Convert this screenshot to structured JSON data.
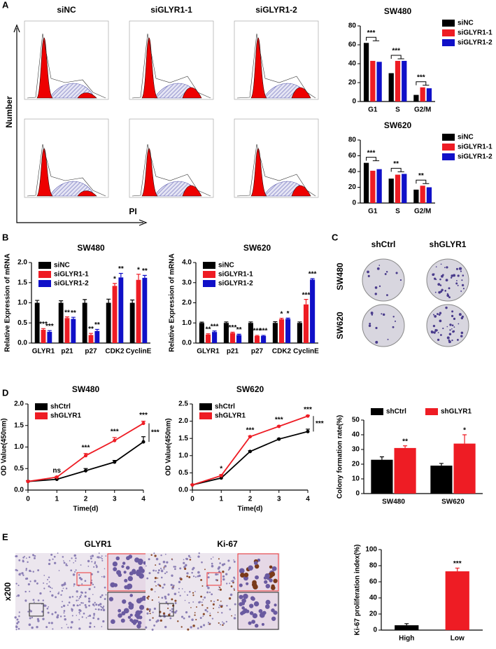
{
  "figure": {
    "panels": [
      "A",
      "B",
      "C",
      "D",
      "E"
    ],
    "flow": {
      "columns": [
        "siNC",
        "siGLYR1-1",
        "siGLYR1-2"
      ],
      "y_label": "Number",
      "x_label": "PI"
    },
    "colony": {
      "columns": [
        "shCtrl",
        "shGLYR1"
      ],
      "rows": [
        "SW480",
        "SW620"
      ]
    },
    "ihc": {
      "columns": [
        "GLYR1",
        "Ki-67"
      ],
      "row": "x200"
    }
  },
  "chart_data": [
    {
      "type": "bar",
      "title": "SW480",
      "categories": [
        "G1",
        "S",
        "G2/M"
      ],
      "ylim": [
        0,
        80
      ],
      "yticks": [
        0,
        20,
        40,
        60,
        80
      ],
      "legend": "right",
      "annotations": [
        "***",
        "***",
        "***"
      ],
      "series": [
        {
          "name": "siNC",
          "color": "#000000",
          "values": [
            62,
            30,
            7
          ]
        },
        {
          "name": "siGLYR1-1",
          "color": "#ee1c24",
          "values": [
            43,
            43,
            15
          ]
        },
        {
          "name": "siGLYR1-2",
          "color": "#1010c8",
          "values": [
            42,
            43,
            14
          ]
        }
      ]
    },
    {
      "type": "bar",
      "title": "SW620",
      "categories": [
        "G1",
        "S",
        "G2/M"
      ],
      "ylim": [
        0,
        80
      ],
      "yticks": [
        0,
        20,
        40,
        60,
        80
      ],
      "legend": "right",
      "annotations": [
        "***",
        "**",
        "**"
      ],
      "series": [
        {
          "name": "siNC",
          "color": "#000000",
          "values": [
            51,
            31,
            17
          ]
        },
        {
          "name": "siGLYR1-1",
          "color": "#ee1c24",
          "values": [
            41,
            36,
            22
          ]
        },
        {
          "name": "siGLYR1-2",
          "color": "#1010c8",
          "values": [
            43,
            37,
            20
          ]
        }
      ]
    },
    {
      "type": "bar",
      "title": "SW480",
      "y_label": "Relative Expression of mRNA",
      "categories": [
        "GLYR1",
        "p21",
        "p27",
        "CDK2",
        "CyclinE"
      ],
      "ylim": [
        0,
        2
      ],
      "yticks": [
        {
          "value": 0,
          "label": "0.0"
        },
        0.5,
        {
          "value": 1,
          "label": "1.0"
        },
        1.5,
        {
          "value": 2,
          "label": "2.0"
        }
      ],
      "legend": "upper left",
      "series": [
        {
          "name": "siNC",
          "color": "#000000",
          "values": [
            1,
            1,
            1,
            1,
            1
          ],
          "errors": [
            0.06,
            0.05,
            0.08,
            0.09,
            0.07
          ]
        },
        {
          "name": "siGLYR1-1",
          "color": "#ee1c24",
          "values": [
            0.33,
            0.62,
            0.2,
            1.42,
            1.57
          ],
          "errors": [
            0.03,
            0.03,
            0.04,
            0.06,
            0.14
          ],
          "stars": [
            "***",
            "**",
            "**",
            "*",
            "*"
          ]
        },
        {
          "name": "siGLYR1-2",
          "color": "#1010c8",
          "values": [
            0.28,
            0.6,
            0.3,
            1.63,
            1.62
          ],
          "errors": [
            0.03,
            0.04,
            0.04,
            0.1,
            0.06
          ],
          "stars": [
            "***",
            "**",
            "**",
            "**",
            "**"
          ]
        }
      ]
    },
    {
      "type": "bar",
      "title": "SW620",
      "y_label": "Relative Expression of mRNA",
      "categories": [
        "GLYR1",
        "p21",
        "p27",
        "CDK2",
        "CyclinE"
      ],
      "ylim": [
        0,
        4
      ],
      "yticks": [
        {
          "value": 0,
          "label": "0.0"
        },
        {
          "value": 1,
          "label": "1.0"
        },
        {
          "value": 2,
          "label": "2.0"
        },
        {
          "value": 3,
          "label": "3.0"
        },
        {
          "value": 4,
          "label": "4.0"
        }
      ],
      "legend": "upper left",
      "series": [
        {
          "name": "siNC",
          "color": "#000000",
          "values": [
            1,
            1,
            1,
            1,
            1
          ],
          "errors": [
            0.04,
            0.05,
            0.05,
            0.06,
            0.05
          ]
        },
        {
          "name": "siGLYR1-1",
          "color": "#ee1c24",
          "values": [
            0.42,
            0.5,
            0.35,
            1.18,
            1.92
          ],
          "errors": [
            0.04,
            0.04,
            0.03,
            0.05,
            0.25
          ],
          "stars": [
            "**",
            "***",
            "***",
            "*",
            "***"
          ]
        },
        {
          "name": "siGLYR1-2",
          "color": "#1010c8",
          "values": [
            0.55,
            0.4,
            0.35,
            1.2,
            3.15
          ],
          "errors": [
            0.05,
            0.04,
            0.03,
            0.04,
            0.05
          ],
          "stars": [
            "***",
            "**",
            "***",
            "*",
            "***"
          ]
        }
      ]
    },
    {
      "type": "line",
      "title": "SW480",
      "x_label": "Time(d)",
      "y_label": "OD Value(450nm)",
      "x": [
        0,
        1,
        2,
        3,
        4
      ],
      "xlim": [
        0,
        4
      ],
      "xticks": [
        0,
        1,
        2,
        3,
        4
      ],
      "ylim": [
        0,
        2
      ],
      "yticks": [
        {
          "value": 0,
          "label": "0.0"
        },
        0.5,
        {
          "value": 1,
          "label": "1.0"
        },
        1.5,
        {
          "value": 2,
          "label": "2.0"
        }
      ],
      "legend": "upper left",
      "stars": [
        null,
        "ns",
        "***",
        "***",
        "***"
      ],
      "bracket_label": "***",
      "series": [
        {
          "name": "shCtrl",
          "color": "#000000",
          "values": [
            0.2,
            0.25,
            0.45,
            0.65,
            1.12
          ],
          "errors": [
            0.02,
            0.02,
            0.05,
            0.04,
            0.12
          ]
        },
        {
          "name": "shGLYR1",
          "color": "#ee1c24",
          "values": [
            0.2,
            0.3,
            0.8,
            1.15,
            1.55
          ],
          "errors": [
            0.02,
            0.02,
            0.05,
            0.07,
            0.05
          ]
        }
      ]
    },
    {
      "type": "line",
      "title": "SW620",
      "x_label": "Time(d)",
      "y_label": "OD Value(450nm)",
      "x": [
        0,
        1,
        2,
        3,
        4
      ],
      "xlim": [
        0,
        4
      ],
      "xticks": [
        0,
        1,
        2,
        3,
        4
      ],
      "ylim": [
        0,
        2.5
      ],
      "yticks": [
        {
          "value": 0,
          "label": "0.0"
        },
        0.5,
        {
          "value": 1,
          "label": "1.0"
        },
        1.5,
        {
          "value": 2,
          "label": "2.0"
        },
        2.5
      ],
      "legend": "upper left",
      "stars": [
        null,
        "*",
        "***",
        "***",
        "***"
      ],
      "bracket_label": "***",
      "series": [
        {
          "name": "shCtrl",
          "color": "#000000",
          "values": [
            0.15,
            0.35,
            1.12,
            1.48,
            1.7
          ],
          "errors": [
            0.02,
            0.05,
            0.02,
            0.02,
            0.07
          ]
        },
        {
          "name": "shGLYR1",
          "color": "#ee1c24",
          "values": [
            0.15,
            0.42,
            1.55,
            1.85,
            2.15
          ],
          "errors": [
            0.02,
            0.03,
            0.02,
            0.02,
            0.02
          ]
        }
      ]
    },
    {
      "type": "bar",
      "y_label": "Colony formation rate(%)",
      "categories": [
        "SW480",
        "SW620"
      ],
      "ylim": [
        0,
        50
      ],
      "yticks": [
        0,
        10,
        20,
        30,
        40,
        50
      ],
      "legend": "top",
      "series": [
        {
          "name": "shCtrl",
          "color": "#000000",
          "values": [
            23,
            19
          ],
          "errors": [
            2,
            1.5
          ]
        },
        {
          "name": "shGLYR1",
          "color": "#ee1c24",
          "values": [
            31,
            34
          ],
          "errors": [
            1.5,
            6
          ],
          "stars": [
            "**",
            "*"
          ]
        }
      ]
    },
    {
      "type": "bar",
      "y_label": "Ki-67 proliferation index(%)",
      "categories": [
        "High",
        "Low"
      ],
      "ylim": [
        0,
        100
      ],
      "yticks": [
        0,
        20,
        40,
        60,
        80,
        100
      ],
      "series": [
        {
          "colors": [
            "#000000",
            "#ee1c24"
          ],
          "values": [
            6,
            73
          ],
          "errors": [
            2,
            4
          ],
          "stars": [
            null,
            "***"
          ]
        }
      ]
    }
  ]
}
